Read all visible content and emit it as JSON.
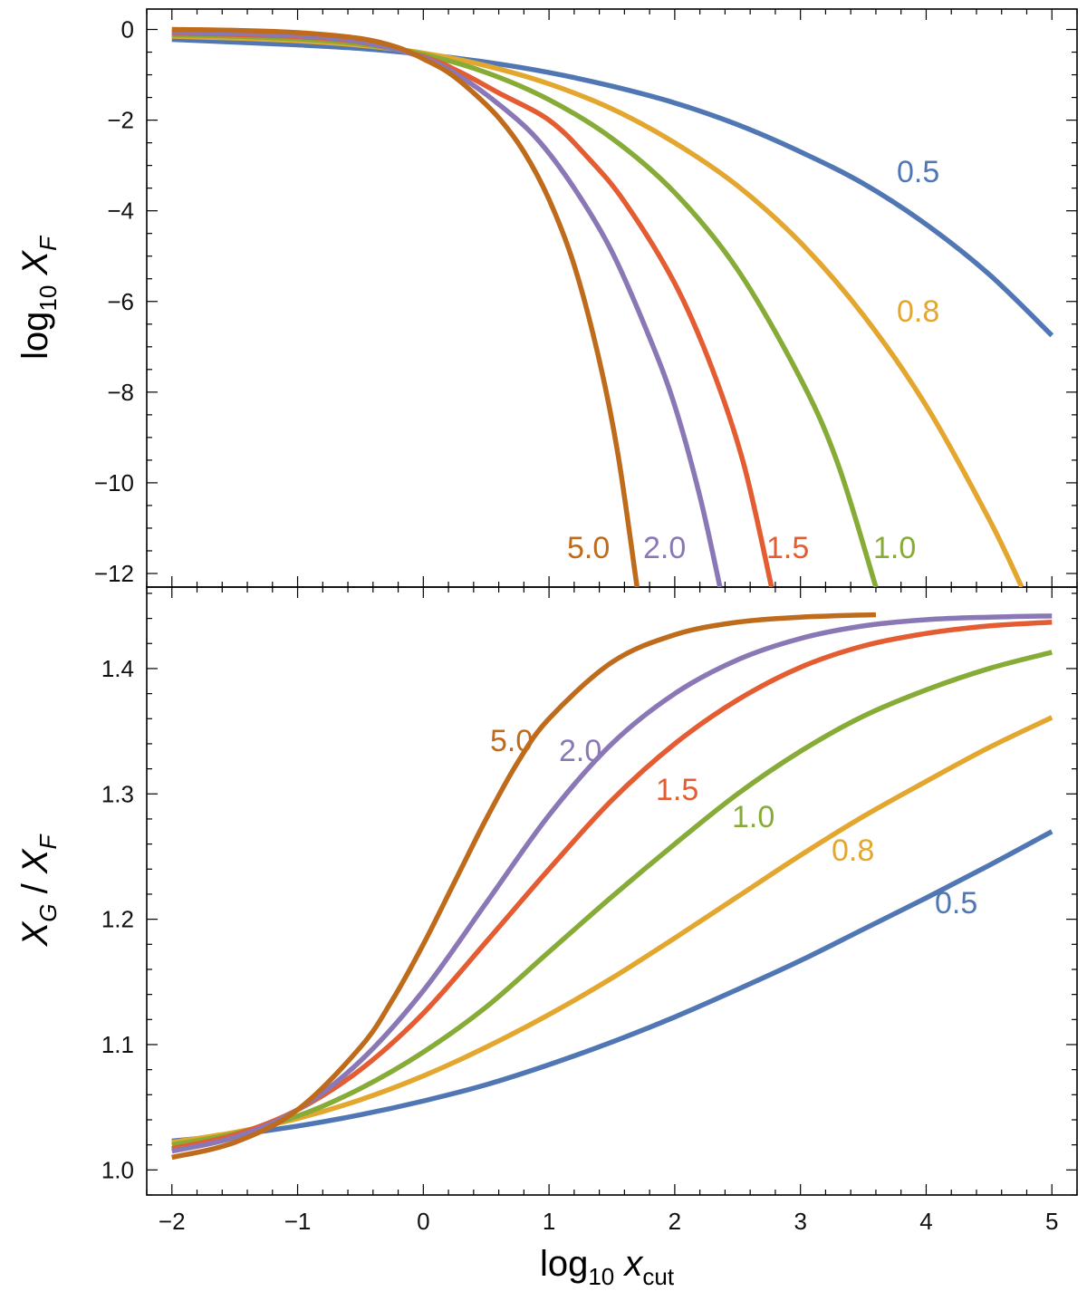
{
  "chart_data": [
    {
      "type": "line",
      "panel": "top",
      "ylabel": {
        "base": "log",
        "sub": "10",
        "var": "X",
        "var_sub": "F"
      },
      "xlim": [
        -2.2,
        5.2
      ],
      "ylim": [
        -12.3,
        0.45
      ],
      "y_ticks": [
        0,
        -2,
        -4,
        -6,
        -8,
        -10,
        -12
      ],
      "y_tick_labels": [
        "0",
        "−2",
        "−4",
        "−6",
        "−8",
        "−10",
        "−12"
      ],
      "series": [
        {
          "name": "0.5",
          "label": "0.5",
          "color": "#5077b4",
          "x": [
            -2,
            -1.5,
            -1,
            -0.5,
            0,
            0.5,
            1,
            1.5,
            2,
            2.5,
            3,
            3.5,
            4,
            4.5,
            5
          ],
          "y": [
            -0.22,
            -0.28,
            -0.34,
            -0.42,
            -0.55,
            -0.72,
            -0.95,
            -1.25,
            -1.62,
            -2.1,
            -2.7,
            -3.4,
            -4.3,
            -5.4,
            -6.75
          ]
        },
        {
          "name": "0.8",
          "label": "0.8",
          "color": "#e3a72f",
          "x": [
            -2,
            -1.5,
            -1,
            -0.5,
            0,
            0.5,
            1,
            1.5,
            2,
            2.5,
            3,
            3.5,
            4,
            4.5,
            4.76
          ],
          "y": [
            -0.15,
            -0.19,
            -0.25,
            -0.35,
            -0.52,
            -0.8,
            -1.2,
            -1.75,
            -2.5,
            -3.45,
            -4.7,
            -6.3,
            -8.3,
            -10.8,
            -12.3
          ]
        },
        {
          "name": "1.0",
          "label": "1.0",
          "color": "#86ac37",
          "x": [
            -2,
            -1.5,
            -1,
            -0.5,
            0,
            0.5,
            1,
            1.5,
            2,
            2.5,
            3,
            3.3,
            3.6
          ],
          "y": [
            -0.12,
            -0.15,
            -0.21,
            -0.32,
            -0.55,
            -0.95,
            -1.55,
            -2.4,
            -3.6,
            -5.3,
            -7.7,
            -9.6,
            -12.3
          ]
        },
        {
          "name": "1.5",
          "label": "1.5",
          "color": "#e45c32",
          "x": [
            -2,
            -1.5,
            -1,
            -0.5,
            0,
            0.3,
            0.6,
            1,
            1.3,
            1.6,
            2,
            2.3,
            2.55,
            2.77
          ],
          "y": [
            -0.08,
            -0.11,
            -0.16,
            -0.28,
            -0.6,
            -0.95,
            -1.4,
            -2.0,
            -2.8,
            -3.8,
            -5.6,
            -7.5,
            -9.6,
            -12.3
          ]
        },
        {
          "name": "2.0",
          "label": "2.0",
          "color": "#8a78b6",
          "x": [
            -2,
            -1.5,
            -1,
            -0.5,
            0,
            0.3,
            0.6,
            0.9,
            1.2,
            1.5,
            1.8,
            2.0,
            2.2,
            2.36
          ],
          "y": [
            -0.06,
            -0.09,
            -0.14,
            -0.27,
            -0.62,
            -1.05,
            -1.65,
            -2.4,
            -3.5,
            -4.9,
            -6.8,
            -8.3,
            -10.3,
            -12.3
          ]
        },
        {
          "name": "5.0",
          "label": "5.0",
          "color": "#bf6b1c",
          "x": [
            -2,
            -1.5,
            -1,
            -0.5,
            -0.2,
            0,
            0.2,
            0.4,
            0.6,
            0.8,
            1.0,
            1.2,
            1.4,
            1.55,
            1.7
          ],
          "y": [
            0,
            -0.02,
            -0.07,
            -0.2,
            -0.4,
            -0.65,
            -0.95,
            -1.4,
            -1.95,
            -2.7,
            -3.75,
            -5.2,
            -7.3,
            -9.4,
            -12.3
          ]
        }
      ]
    },
    {
      "type": "line",
      "panel": "bottom",
      "ylabel": {
        "var1": "X",
        "sub1": "G",
        "sep": " / ",
        "var2": "X",
        "sub2": "F"
      },
      "xlabel": {
        "base": "log",
        "sub": "10",
        "var": "x",
        "var_sub": "cut"
      },
      "xlim": [
        -2.2,
        5.2
      ],
      "ylim": [
        0.98,
        1.465
      ],
      "x_ticks": [
        -2,
        -1,
        0,
        1,
        2,
        3,
        4,
        5
      ],
      "x_tick_labels": [
        "−2",
        "−1",
        "0",
        "1",
        "2",
        "3",
        "4",
        "5"
      ],
      "y_ticks": [
        1.0,
        1.1,
        1.2,
        1.3,
        1.4
      ],
      "y_tick_labels": [
        "1.0",
        "1.1",
        "1.2",
        "1.3",
        "1.4"
      ],
      "series": [
        {
          "name": "0.5",
          "label": "0.5",
          "color": "#5077b4",
          "x": [
            -2,
            -1.5,
            -1,
            -0.5,
            0,
            0.5,
            1,
            1.5,
            2,
            2.5,
            3,
            3.5,
            4,
            4.5,
            5
          ],
          "y": [
            1.023,
            1.028,
            1.035,
            1.044,
            1.055,
            1.068,
            1.084,
            1.102,
            1.122,
            1.144,
            1.167,
            1.192,
            1.217,
            1.243,
            1.27
          ]
        },
        {
          "name": "0.8",
          "label": "0.8",
          "color": "#e3a72f",
          "x": [
            -2,
            -1.5,
            -1,
            -0.5,
            0,
            0.5,
            1,
            1.5,
            2,
            2.5,
            3,
            3.5,
            4,
            4.5,
            5
          ],
          "y": [
            1.022,
            1.03,
            1.041,
            1.056,
            1.075,
            1.098,
            1.124,
            1.153,
            1.185,
            1.218,
            1.251,
            1.282,
            1.31,
            1.337,
            1.361
          ]
        },
        {
          "name": "1.0",
          "label": "1.0",
          "color": "#86ac37",
          "x": [
            -2,
            -1.5,
            -1,
            -0.5,
            0,
            0.5,
            1,
            1.5,
            2,
            2.5,
            3,
            3.5,
            4,
            4.5,
            5
          ],
          "y": [
            1.02,
            1.029,
            1.043,
            1.065,
            1.094,
            1.13,
            1.174,
            1.218,
            1.26,
            1.3,
            1.334,
            1.362,
            1.383,
            1.4,
            1.413
          ]
        },
        {
          "name": "1.5",
          "label": "1.5",
          "color": "#e45c32",
          "x": [
            -2,
            -1.5,
            -1,
            -0.5,
            0,
            0.5,
            1,
            1.5,
            2,
            2.5,
            3,
            3.5,
            4,
            4.5,
            5
          ],
          "y": [
            1.017,
            1.028,
            1.048,
            1.08,
            1.125,
            1.182,
            1.24,
            1.295,
            1.34,
            1.375,
            1.401,
            1.418,
            1.428,
            1.434,
            1.437
          ]
        },
        {
          "name": "2.0",
          "label": "2.0",
          "color": "#8a78b6",
          "x": [
            -2,
            -1.5,
            -1,
            -0.5,
            0,
            0.5,
            1,
            1.5,
            2,
            2.5,
            3,
            3.5,
            4,
            4.5,
            5
          ],
          "y": [
            1.015,
            1.026,
            1.048,
            1.087,
            1.143,
            1.213,
            1.283,
            1.34,
            1.38,
            1.407,
            1.424,
            1.434,
            1.439,
            1.441,
            1.442
          ]
        },
        {
          "name": "5.0",
          "label": "5.0",
          "color": "#bf6b1c",
          "x": [
            -2,
            -1.5,
            -1,
            -0.5,
            -0.25,
            0,
            0.25,
            0.5,
            0.75,
            1,
            1.5,
            2,
            2.5,
            3,
            3.6
          ],
          "y": [
            1.01,
            1.022,
            1.048,
            1.098,
            1.135,
            1.18,
            1.23,
            1.28,
            1.325,
            1.36,
            1.405,
            1.427,
            1.437,
            1.441,
            1.443
          ]
        }
      ]
    }
  ],
  "figure": {
    "line_colors": {
      "axis": "#000000",
      "tick_text": "#111111"
    }
  }
}
